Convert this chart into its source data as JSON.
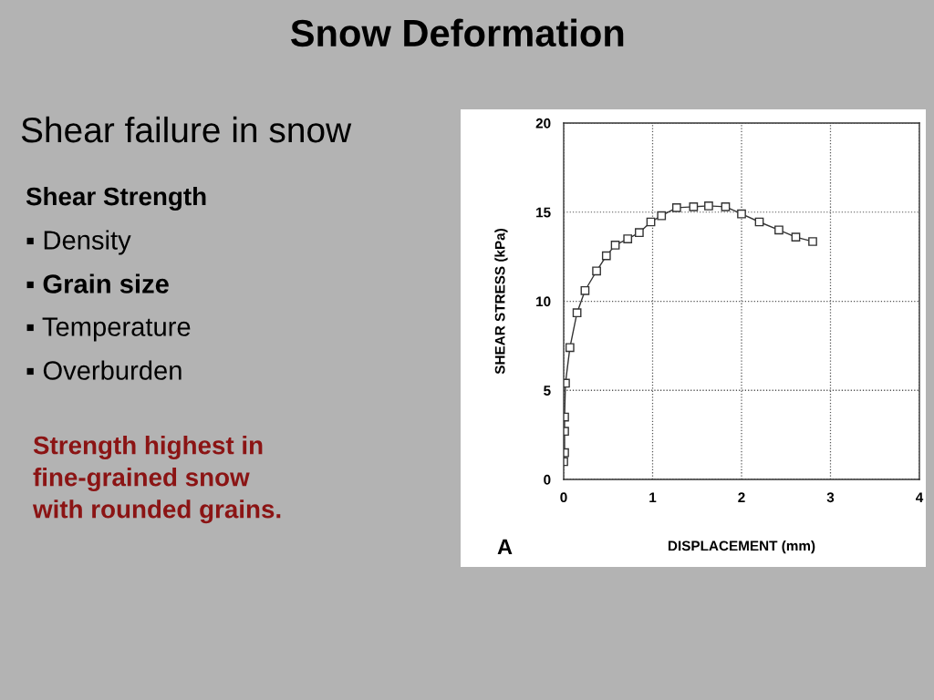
{
  "chart_data": {
    "type": "line",
    "title": "Snow Deformation",
    "subtitle": "Shear failure in snow",
    "xlabel": "DISPLACEMENT (mm)",
    "ylabel": "SHEAR STRESS (kPa)",
    "annotations": [
      "Shear Strength",
      "▪ Density",
      "▪ Grain size",
      "▪ Temperature",
      "▪ Overburden",
      "Strength highest in fine-grained snow with rounded grains.",
      "A"
    ],
    "x": [
      0,
      0.01,
      0.01,
      0.01,
      0.02,
      0.07,
      0.15,
      0.24,
      0.37,
      0.48,
      0.58,
      0.72,
      0.85,
      0.98,
      1.1,
      1.27,
      1.46,
      1.63,
      1.82,
      2.0,
      2.2,
      2.42,
      2.61,
      2.8
    ],
    "series": [
      {
        "color": "#333333",
        "values": [
          1.0,
          1.5,
          2.7,
          3.5,
          5.4,
          7.4,
          9.35,
          10.6,
          11.7,
          12.55,
          13.15,
          13.5,
          13.85,
          14.45,
          14.8,
          15.25,
          15.3,
          15.35,
          15.3,
          14.9,
          14.45,
          14.0,
          13.6,
          13.35
        ]
      }
    ],
    "xlim": [
      0,
      4
    ],
    "ylim": [
      0,
      20
    ],
    "xticks": [
      0,
      1,
      2,
      3,
      4
    ],
    "yticks": [
      0,
      5,
      10,
      15,
      20
    ],
    "grid": true,
    "marker": "square",
    "line_style": "solid"
  }
}
